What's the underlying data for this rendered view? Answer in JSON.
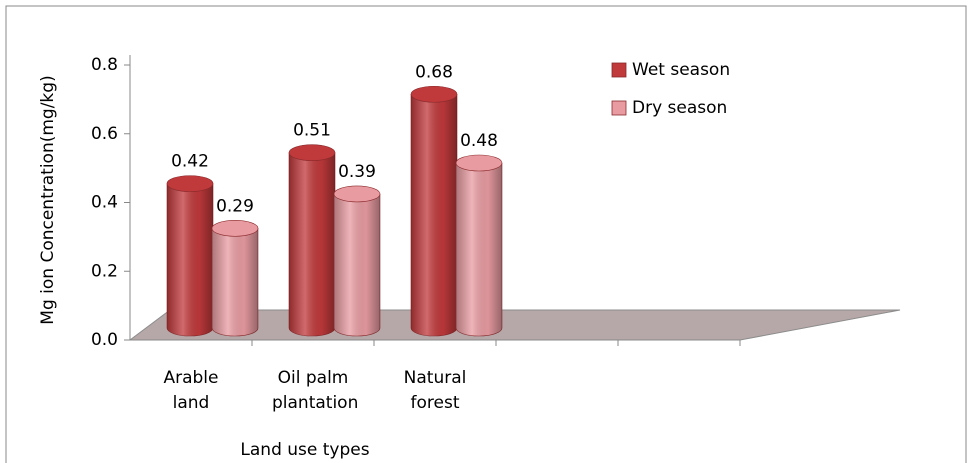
{
  "chart_data": {
    "type": "bar3d-cylinder",
    "x_label": "Land use types",
    "y_label": "Mg ion Concentration(mg/kg)",
    "categories": [
      "Arable land",
      "Oil palm plantation",
      "Natural forest",
      null,
      null
    ],
    "series": [
      {
        "name": "Wet season",
        "color": "#c0393b",
        "values": [
          0.42,
          0.51,
          0.68,
          null,
          null
        ]
      },
      {
        "name": "Dry season",
        "color": "#e89ca2",
        "values": [
          0.29,
          0.39,
          0.48,
          null,
          null
        ]
      }
    ],
    "ylim": [
      0,
      0.8
    ],
    "yticks": [
      {
        "value": 0,
        "label": "0.0"
      },
      0.2,
      0.4,
      0.6,
      0.8
    ]
  }
}
